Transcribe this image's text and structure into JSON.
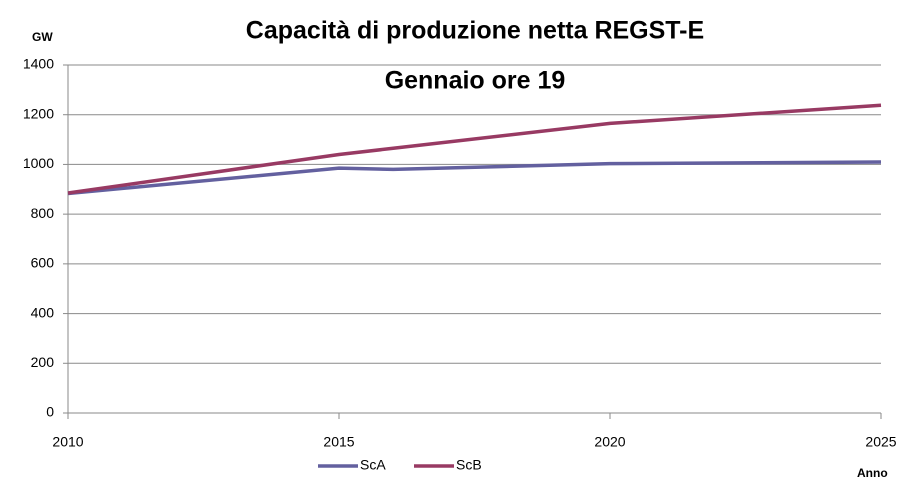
{
  "chart_data": {
    "type": "line",
    "title": "Capacità di produzione netta REGST-E",
    "subtitle": "Gennaio ore 19",
    "y_label": "GW",
    "x_label": "Anno",
    "x": [
      2010,
      2015,
      2016,
      2020,
      2025
    ],
    "series": [
      {
        "name": "ScA",
        "color": "#63609f",
        "values": [
          883,
          985,
          980,
          1003,
          1010
        ]
      },
      {
        "name": "ScB",
        "color": "#983a63",
        "values": [
          885,
          1040,
          1065,
          1165,
          1238
        ]
      }
    ],
    "xlim": [
      2010,
      2025
    ],
    "xticks": [
      2010,
      2015,
      2020,
      2025
    ],
    "ylim": [
      0,
      1400
    ],
    "yticks": [
      0,
      200,
      400,
      600,
      800,
      1000,
      1200,
      1400
    ],
    "grid": true,
    "legend": "bottom"
  }
}
